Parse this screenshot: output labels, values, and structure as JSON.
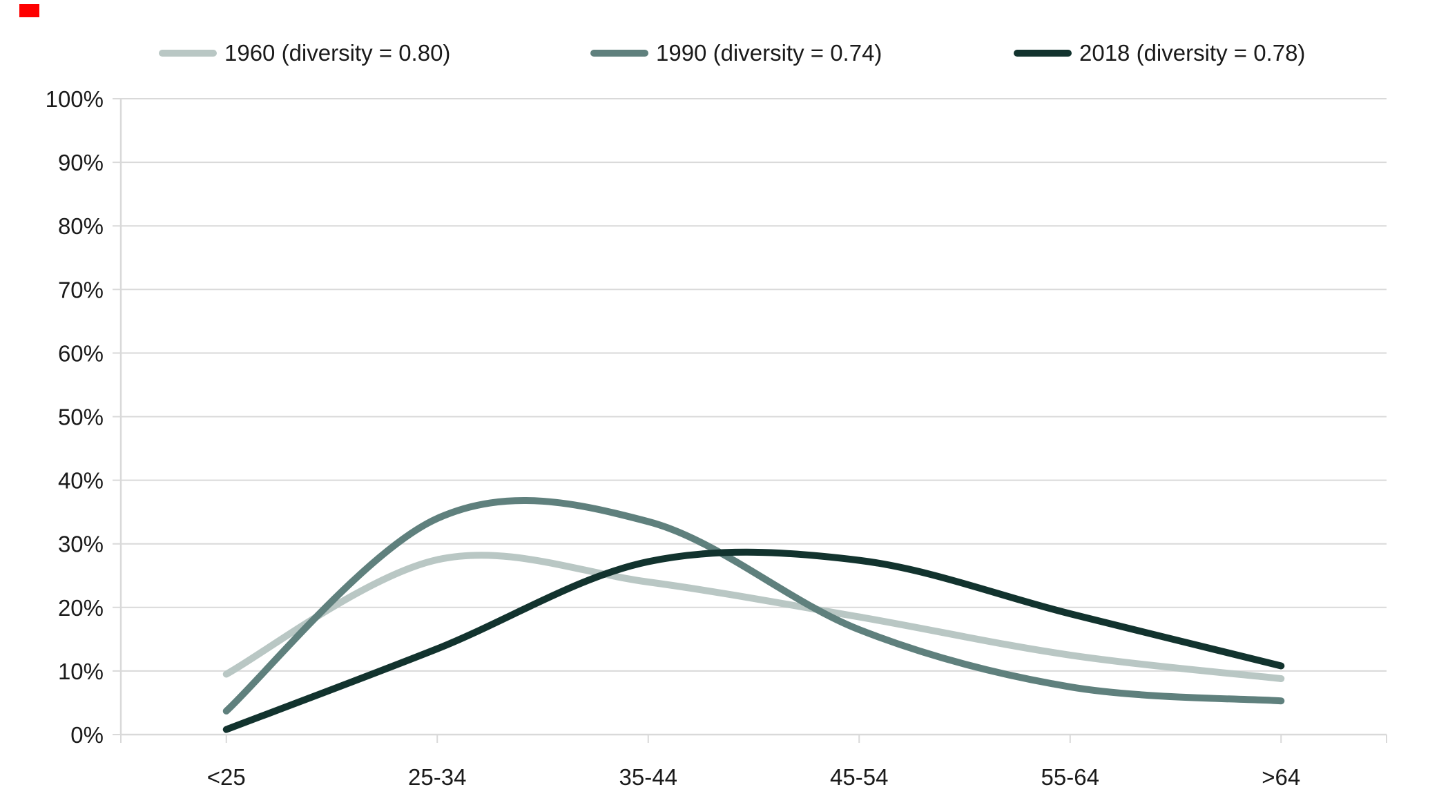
{
  "chart_data": {
    "type": "line",
    "title": "",
    "xlabel": "",
    "ylabel": "",
    "categories": [
      "<25",
      "25-34",
      "35-44",
      "45-54",
      "55-64",
      ">64"
    ],
    "series": [
      {
        "name": "1960",
        "legend_label": "1960 (diversity = 0.80)",
        "color": "#b9c7c4",
        "values": [
          9.5,
          27.5,
          24.0,
          18.5,
          12.5,
          8.8
        ]
      },
      {
        "name": "1990",
        "legend_label": "1990 (diversity = 0.74)",
        "color": "#5f807d",
        "values": [
          3.7,
          34.0,
          33.5,
          16.5,
          7.5,
          5.3
        ]
      },
      {
        "name": "2018",
        "legend_label": "2018 (diversity = 0.78)",
        "color": "#12332e",
        "values": [
          0.8,
          13.5,
          27.2,
          27.4,
          19.0,
          10.8
        ]
      }
    ],
    "ylim": [
      0,
      100
    ],
    "y_tick_step": 10,
    "y_tick_labels": [
      "0%",
      "10%",
      "20%",
      "30%",
      "40%",
      "50%",
      "60%",
      "70%",
      "80%",
      "90%",
      "100%"
    ],
    "grid": "horizontal",
    "legend_position": "top",
    "smooth": true,
    "styles": {
      "gridline_color": "#d9d9d9",
      "axis_color": "#d9d9d9",
      "text_color": "#1a1a1a",
      "background": "#ffffff",
      "red_marker_color": "#fe0000"
    }
  }
}
